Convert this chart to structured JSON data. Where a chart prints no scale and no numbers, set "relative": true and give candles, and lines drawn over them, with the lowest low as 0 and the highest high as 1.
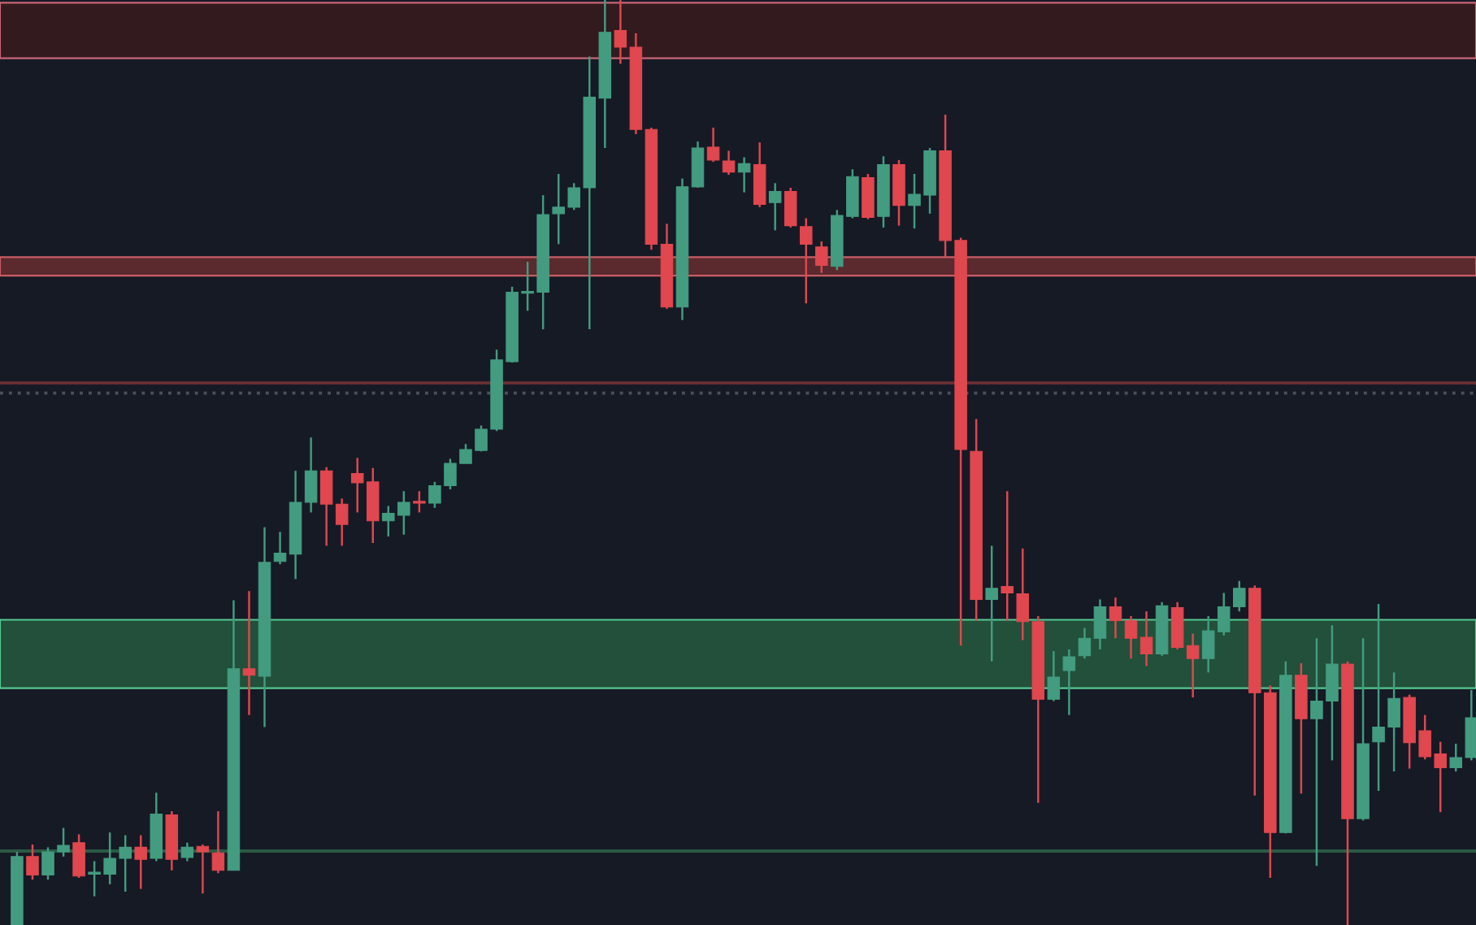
{
  "chart_data": {
    "type": "candlestick",
    "relative": true,
    "categories": [
      null,
      null,
      null,
      null,
      null,
      null,
      null,
      null,
      null,
      null,
      null,
      null,
      null,
      null,
      null,
      null,
      null,
      null,
      null,
      null,
      null,
      null,
      null,
      null,
      null,
      null,
      null,
      null,
      null,
      null,
      null,
      null,
      null,
      null,
      null,
      null,
      null,
      null,
      null,
      null,
      null,
      null,
      null,
      null,
      null,
      null,
      null,
      null,
      null,
      null,
      null,
      null,
      null,
      null,
      null,
      null,
      null,
      null,
      null,
      null,
      null,
      null,
      null,
      null,
      null,
      null,
      null,
      null,
      null,
      null,
      null,
      null,
      null,
      null,
      null,
      null,
      null,
      null,
      null,
      null,
      null,
      null,
      null,
      null,
      null,
      null,
      null,
      null,
      null,
      null,
      null,
      null,
      null,
      null,
      null
    ],
    "ohlc": [
      [
        0,
        0.079,
        0,
        0.074
      ],
      [
        0.074,
        0.087,
        0.049,
        0.054
      ],
      [
        0.054,
        0.084,
        0.049,
        0.079
      ],
      [
        0.079,
        0.105,
        0.074,
        0.086
      ],
      [
        0.089,
        0.098,
        0.051,
        0.053
      ],
      [
        0.055,
        0.069,
        0.031,
        0.057
      ],
      [
        0.055,
        0.1,
        0.044,
        0.072
      ],
      [
        0.072,
        0.097,
        0.036,
        0.084
      ],
      [
        0.084,
        0.097,
        0.039,
        0.071
      ],
      [
        0.072,
        0.143,
        0.069,
        0.12
      ],
      [
        0.119,
        0.123,
        0.059,
        0.071
      ],
      [
        0.073,
        0.089,
        0.069,
        0.084
      ],
      [
        0.085,
        0.087,
        0.034,
        0.079
      ],
      [
        0.078,
        0.123,
        0.056,
        0.059
      ],
      [
        0.059,
        0.351,
        0.059,
        0.277
      ],
      [
        0.277,
        0.361,
        0.227,
        0.27
      ],
      [
        0.269,
        0.43,
        0.214,
        0.392
      ],
      [
        0.393,
        0.425,
        0.39,
        0.402
      ],
      [
        0.401,
        0.491,
        0.374,
        0.457
      ],
      [
        0.457,
        0.527,
        0.446,
        0.491
      ],
      [
        0.491,
        0.495,
        0.41,
        0.455
      ],
      [
        0.455,
        0.461,
        0.41,
        0.433
      ],
      [
        0.488,
        0.505,
        0.446,
        0.478
      ],
      [
        0.479,
        0.494,
        0.413,
        0.437
      ],
      [
        0.437,
        0.453,
        0.42,
        0.445
      ],
      [
        0.443,
        0.469,
        0.422,
        0.457
      ],
      [
        0.458,
        0.469,
        0.446,
        0.456
      ],
      [
        0.456,
        0.479,
        0.451,
        0.475
      ],
      [
        0.475,
        0.504,
        0.471,
        0.499
      ],
      [
        0.499,
        0.52,
        0.499,
        0.514
      ],
      [
        0.513,
        0.54,
        0.512,
        0.536
      ],
      [
        0.536,
        0.622,
        0.534,
        0.611
      ],
      [
        0.609,
        0.69,
        0.608,
        0.684
      ],
      [
        0.683,
        0.717,
        0.664,
        0.685
      ],
      [
        0.684,
        0.789,
        0.644,
        0.768
      ],
      [
        0.769,
        0.812,
        0.736,
        0.776
      ],
      [
        0.776,
        0.802,
        0.773,
        0.797
      ],
      [
        0.797,
        0.939,
        0.644,
        0.895
      ],
      [
        0.894,
        1,
        0.84,
        0.965
      ],
      [
        0.967,
        1,
        0.931,
        0.949
      ],
      [
        0.949,
        0.964,
        0.855,
        0.86
      ],
      [
        0.86,
        0.862,
        0.73,
        0.736
      ],
      [
        0.736,
        0.758,
        0.666,
        0.668
      ],
      [
        0.668,
        0.807,
        0.654,
        0.798
      ],
      [
        0.798,
        0.847,
        0.797,
        0.84
      ],
      [
        0.841,
        0.862,
        0.825,
        0.827
      ],
      [
        0.826,
        0.837,
        0.811,
        0.814
      ],
      [
        0.814,
        0.83,
        0.792,
        0.823
      ],
      [
        0.822,
        0.846,
        0.776,
        0.779
      ],
      [
        0.781,
        0.802,
        0.751,
        0.793
      ],
      [
        0.793,
        0.797,
        0.754,
        0.756
      ],
      [
        0.755,
        0.764,
        0.672,
        0.736
      ],
      [
        0.733,
        0.739,
        0.705,
        0.713
      ],
      [
        0.712,
        0.773,
        0.708,
        0.767
      ],
      [
        0.766,
        0.817,
        0.764,
        0.809
      ],
      [
        0.808,
        0.812,
        0.763,
        0.765
      ],
      [
        0.766,
        0.831,
        0.754,
        0.822
      ],
      [
        0.822,
        0.827,
        0.756,
        0.778
      ],
      [
        0.778,
        0.812,
        0.753,
        0.79
      ],
      [
        0.789,
        0.84,
        0.769,
        0.837
      ],
      [
        0.837,
        0.876,
        0.722,
        0.74
      ],
      [
        0.74,
        0.743,
        0.302,
        0.514
      ],
      [
        0.512,
        0.547,
        0.329,
        0.352
      ],
      [
        0.352,
        0.41,
        0.285,
        0.364
      ],
      [
        0.366,
        0.469,
        0.329,
        0.359
      ],
      [
        0.358,
        0.407,
        0.308,
        0.328
      ],
      [
        0.328,
        0.334,
        0.132,
        0.244
      ],
      [
        0.244,
        0.296,
        0.242,
        0.268
      ],
      [
        0.275,
        0.298,
        0.227,
        0.29
      ],
      [
        0.291,
        0.321,
        0.288,
        0.31
      ],
      [
        0.31,
        0.352,
        0.298,
        0.344
      ],
      [
        0.344,
        0.354,
        0.31,
        0.329
      ],
      [
        0.329,
        0.334,
        0.288,
        0.31
      ],
      [
        0.311,
        0.339,
        0.28,
        0.293
      ],
      [
        0.293,
        0.349,
        0.291,
        0.345
      ],
      [
        0.343,
        0.349,
        0.298,
        0.3
      ],
      [
        0.302,
        0.315,
        0.246,
        0.288
      ],
      [
        0.288,
        0.334,
        0.273,
        0.318
      ],
      [
        0.317,
        0.359,
        0.313,
        0.344
      ],
      [
        0.344,
        0.372,
        0.339,
        0.364
      ],
      [
        0.364,
        0.367,
        0.14,
        0.251
      ],
      [
        0.251,
        0.259,
        0.051,
        0.1
      ],
      [
        0.1,
        0.285,
        0.099,
        0.27
      ],
      [
        0.27,
        0.283,
        0.142,
        0.223
      ],
      [
        0.223,
        0.31,
        0.064,
        0.242
      ],
      [
        0.242,
        0.324,
        0.178,
        0.282
      ],
      [
        0.282,
        0.285,
        0,
        0.115
      ],
      [
        0.115,
        0.31,
        0.113,
        0.196
      ],
      [
        0.198,
        0.347,
        0.145,
        0.214
      ],
      [
        0.214,
        0.273,
        0.166,
        0.245
      ],
      [
        0.246,
        0.249,
        0.169,
        0.197
      ],
      [
        0.21,
        0.227,
        0.179,
        0.182
      ],
      [
        0.185,
        0.198,
        0.122,
        0.17
      ],
      [
        0.17,
        0.196,
        0.166,
        0.181
      ],
      [
        0.181,
        0.254,
        0.178,
        0.224
      ]
    ],
    "colors": [
      "#439c80",
      "#e0474f",
      "#439c80",
      "#439c80",
      "#e0474f",
      "#439c80",
      "#439c80",
      "#439c80",
      "#e0474f",
      "#439c80",
      "#e0474f",
      "#439c80",
      "#e0474f",
      "#e0474f",
      "#439c80",
      "#e0474f",
      "#439c80",
      "#439c80",
      "#439c80",
      "#439c80",
      "#e0474f",
      "#e0474f",
      "#e0474f",
      "#e0474f",
      "#439c80",
      "#439c80",
      "#e0474f",
      "#439c80",
      "#439c80",
      "#439c80",
      "#439c80",
      "#439c80",
      "#439c80",
      "#439c80",
      "#439c80",
      "#439c80",
      "#439c80",
      "#439c80",
      "#439c80",
      "#e0474f",
      "#e0474f",
      "#e0474f",
      "#e0474f",
      "#439c80",
      "#439c80",
      "#e0474f",
      "#e0474f",
      "#439c80",
      "#e0474f",
      "#439c80",
      "#e0474f",
      "#e0474f",
      "#e0474f",
      "#439c80",
      "#439c80",
      "#e0474f",
      "#439c80",
      "#e0474f",
      "#439c80",
      "#439c80",
      "#e0474f",
      "#e0474f",
      "#e0474f",
      "#439c80",
      "#e0474f",
      "#e0474f",
      "#e0474f",
      "#439c80",
      "#439c80",
      "#439c80",
      "#439c80",
      "#e0474f",
      "#e0474f",
      "#e0474f",
      "#439c80",
      "#e0474f",
      "#e0474f",
      "#439c80",
      "#439c80",
      "#439c80",
      "#e0474f",
      "#e0474f",
      "#439c80",
      "#e0474f",
      "#439c80",
      "#439c80",
      "#e0474f",
      "#439c80",
      "#439c80",
      "#439c80",
      "#e0474f",
      "#e0474f",
      "#e0474f",
      "#439c80",
      "#439c80"
    ],
    "bands": [
      {
        "axis": "y",
        "from": 0.937,
        "to": 0.997,
        "color": "#331a1e"
      },
      {
        "axis": "y",
        "from": 0.702,
        "to": 0.722,
        "color": "#5a2a2e"
      },
      {
        "axis": "y",
        "from": 0.256,
        "to": 0.33,
        "color": "#22503a"
      }
    ],
    "ref_lines": [
      {
        "axis": "y",
        "value": 0.586,
        "color": "#6a3034",
        "line_style": "solid"
      },
      {
        "axis": "y",
        "value": 0.575,
        "color": "#4a4f5c",
        "line_style": "dotted"
      },
      {
        "axis": "y",
        "value": 0.08,
        "color": "#2a5a44",
        "line_style": "solid"
      }
    ]
  }
}
